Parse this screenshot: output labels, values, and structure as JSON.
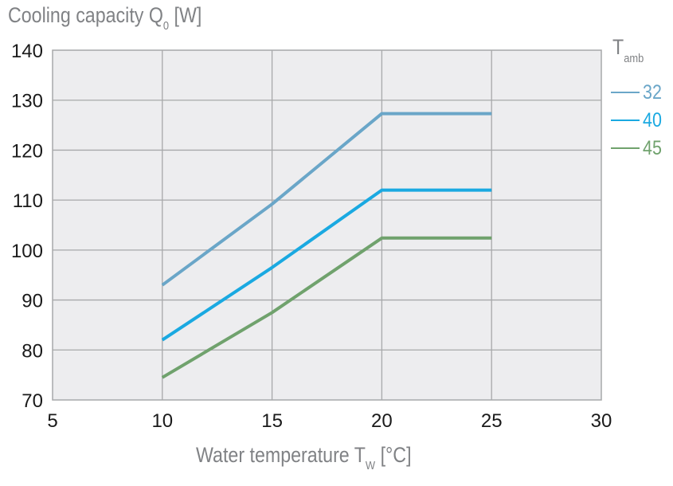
{
  "chart_data": {
    "type": "line",
    "title": "",
    "ylabel": {
      "main": "Cooling capacity Q",
      "sub": "0",
      "unit": " [W]"
    },
    "xlabel": {
      "main": "Water temperature T",
      "sub": "W",
      "unit": " [°C]"
    },
    "xlim": [
      5,
      30
    ],
    "ylim": [
      70,
      140
    ],
    "xticks": [
      5,
      10,
      15,
      20,
      25,
      30
    ],
    "yticks": [
      70,
      80,
      90,
      100,
      110,
      120,
      130,
      140
    ],
    "grid": true,
    "legend": {
      "placement": "right",
      "title_main": "T",
      "title_sub": "amb"
    },
    "series": [
      {
        "name": "32",
        "color": "#6aa6c8",
        "x": [
          10,
          15,
          20,
          25
        ],
        "y": [
          93,
          109.2,
          127.3,
          127.3
        ]
      },
      {
        "name": "40",
        "color": "#1aa9e1",
        "x": [
          10,
          15,
          20,
          25
        ],
        "y": [
          82,
          96.5,
          112,
          112
        ]
      },
      {
        "name": "45",
        "color": "#70a26d",
        "x": [
          10,
          15,
          20,
          25
        ],
        "y": [
          74.5,
          87.5,
          102.4,
          102.4
        ]
      }
    ],
    "colors": {
      "plot_bg": "#ededef",
      "grid": "#a7a8aa",
      "axis_text": "#1a1a1a",
      "title_text": "#808285"
    }
  }
}
